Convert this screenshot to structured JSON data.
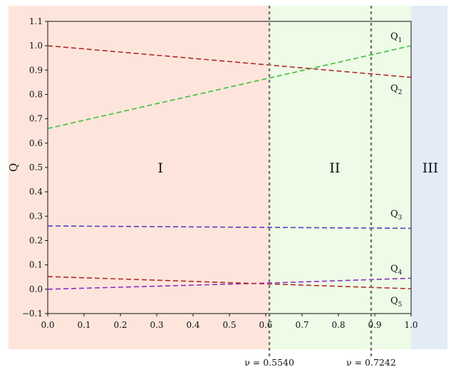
{
  "chart_data": {
    "type": "line",
    "ylabel": "Q",
    "xlabel": "",
    "xlim": [
      0.0,
      1.0
    ],
    "ylim": [
      -0.1,
      1.1
    ],
    "x_ticks": [
      "0.0",
      "0.1",
      "0.2",
      "0.3",
      "0.4",
      "0.5",
      "0.6",
      "0.7",
      "0.8",
      "0.9",
      "1.0"
    ],
    "y_ticks": [
      "−0.1",
      "0.0",
      "0.1",
      "0.2",
      "0.3",
      "0.4",
      "0.5",
      "0.6",
      "0.7",
      "0.8",
      "0.9",
      "1.0",
      "1.1"
    ],
    "regions": [
      {
        "name": "I",
        "x_start": 0.0,
        "x_end": 0.61,
        "color": "#fde5dc"
      },
      {
        "name": "II",
        "x_start": 0.61,
        "x_end": 0.89,
        "color": "#eefbe6"
      },
      {
        "name": "III",
        "x_start": 1.0,
        "x_end": 1.0,
        "color": "#e3ebf7"
      }
    ],
    "markers": [
      {
        "x": 0.61,
        "label": "ν = 0.5540"
      },
      {
        "x": 0.89,
        "label": "ν = 0.7242"
      }
    ],
    "series": [
      {
        "name": "Q",
        "sub": "1",
        "color": "#3cbf3c",
        "x": [
          0.0,
          1.0
        ],
        "y": [
          0.66,
          1.0
        ]
      },
      {
        "name": "Q",
        "sub": "2",
        "color": "#b02a2a",
        "x": [
          0.0,
          1.0
        ],
        "y": [
          1.0,
          0.87
        ]
      },
      {
        "name": "Q",
        "sub": "3",
        "color": "#5a3cc8",
        "x": [
          0.0,
          1.0
        ],
        "y": [
          0.26,
          0.25
        ]
      },
      {
        "name": "Q",
        "sub": "4",
        "color": "#8a2fc4",
        "x": [
          0.0,
          0.6,
          1.0
        ],
        "y": [
          0.0,
          0.025,
          0.045
        ]
      },
      {
        "name": "Q",
        "sub": "5",
        "color": "#b02a2a",
        "x": [
          0.0,
          1.0
        ],
        "y": [
          0.052,
          0.002
        ]
      }
    ]
  }
}
